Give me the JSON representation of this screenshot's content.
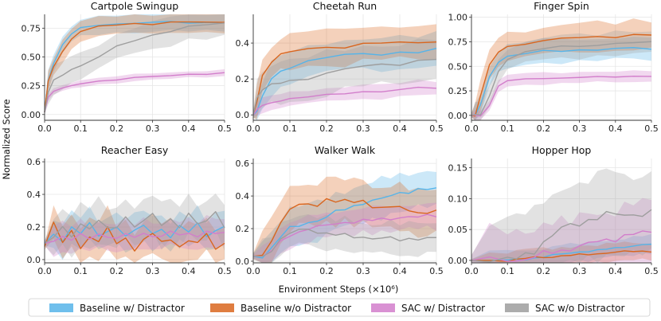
{
  "figure": {
    "ylabel": "Normalized Score",
    "xlabel": "Environment Steps (×10⁶)"
  },
  "colors": {
    "baseline_with_distractor": "#56b4e9",
    "baseline_without_distractor": "#d9661f",
    "sac_with_distractor": "#d27ecb",
    "sac_without_distractor": "#9e9e9e"
  },
  "legend": [
    {
      "key": "baseline_with_distractor",
      "label": "Baseline w/ Distractor"
    },
    {
      "key": "baseline_without_distractor",
      "label": "Baseline w/o Distractor"
    },
    {
      "key": "sac_with_distractor",
      "label": "SAC w/ Distractor"
    },
    {
      "key": "sac_without_distractor",
      "label": "SAC w/o Distractor"
    }
  ],
  "chart_data": [
    {
      "type": "line",
      "title": "Cartpole Swingup",
      "xlabel": "",
      "ylabel": "",
      "xlim": [
        0,
        0.5
      ],
      "ylim": [
        -0.05,
        0.87
      ],
      "xticks": [
        0.0,
        0.1,
        0.2,
        0.3,
        0.4,
        0.5
      ],
      "xtick_labels": [
        "0.0",
        "0.1",
        "0.2",
        "0.3",
        "0.4",
        "0.5"
      ],
      "yticks": [
        0.0,
        0.25,
        0.5,
        0.75
      ],
      "ytick_labels": [
        "0.00",
        "0.25",
        "0.50",
        "0.75"
      ],
      "x": [
        0.0,
        0.01,
        0.025,
        0.05,
        0.075,
        0.1,
        0.15,
        0.2,
        0.25,
        0.3,
        0.35,
        0.4,
        0.45,
        0.5
      ],
      "series": [
        {
          "key": "baseline_with_distractor",
          "name": "Baseline w/ Distractor",
          "values": [
            0.02,
            0.3,
            0.45,
            0.6,
            0.7,
            0.75,
            0.78,
            0.79,
            0.79,
            0.8,
            0.8,
            0.8,
            0.8,
            0.8
          ],
          "band": 0.08
        },
        {
          "key": "baseline_without_distractor",
          "name": "Baseline w/o Distractor",
          "values": [
            0.02,
            0.28,
            0.42,
            0.55,
            0.66,
            0.72,
            0.76,
            0.78,
            0.79,
            0.79,
            0.8,
            0.8,
            0.8,
            0.8
          ],
          "band": 0.09
        },
        {
          "key": "sac_with_distractor",
          "name": "SAC w/ Distractor",
          "values": [
            0.02,
            0.15,
            0.2,
            0.23,
            0.25,
            0.27,
            0.29,
            0.3,
            0.32,
            0.33,
            0.34,
            0.35,
            0.35,
            0.36
          ],
          "band": 0.03
        },
        {
          "key": "sac_without_distractor",
          "name": "SAC w/o Distractor",
          "values": [
            0.02,
            0.2,
            0.3,
            0.35,
            0.38,
            0.42,
            0.5,
            0.6,
            0.65,
            0.68,
            0.72,
            0.76,
            0.79,
            0.8
          ],
          "band": 0.12
        }
      ]
    },
    {
      "type": "line",
      "title": "Cheetah Run",
      "xlabel": "",
      "ylabel": "",
      "xlim": [
        0,
        0.5
      ],
      "ylim": [
        -0.03,
        0.56
      ],
      "xticks": [
        0.0,
        0.1,
        0.2,
        0.3,
        0.4,
        0.5
      ],
      "xtick_labels": [
        "0.0",
        "0.1",
        "0.2",
        "0.3",
        "0.4",
        "0.5"
      ],
      "yticks": [
        0.0,
        0.2,
        0.4
      ],
      "ytick_labels": [
        "0.0",
        "0.2",
        "0.4"
      ],
      "x": [
        0.0,
        0.01,
        0.025,
        0.05,
        0.075,
        0.1,
        0.15,
        0.2,
        0.25,
        0.3,
        0.35,
        0.4,
        0.45,
        0.5
      ],
      "series": [
        {
          "key": "baseline_with_distractor",
          "name": "Baseline w/ Distractor",
          "values": [
            0.0,
            0.02,
            0.1,
            0.2,
            0.24,
            0.27,
            0.3,
            0.32,
            0.33,
            0.34,
            0.34,
            0.35,
            0.35,
            0.36
          ],
          "band": 0.09
        },
        {
          "key": "baseline_without_distractor",
          "name": "Baseline w/o Distractor",
          "values": [
            0.0,
            0.08,
            0.22,
            0.3,
            0.33,
            0.35,
            0.37,
            0.38,
            0.38,
            0.39,
            0.4,
            0.4,
            0.41,
            0.41
          ],
          "band": 0.1
        },
        {
          "key": "sac_with_distractor",
          "name": "SAC w/ Distractor",
          "values": [
            0.0,
            0.03,
            0.05,
            0.07,
            0.08,
            0.09,
            0.1,
            0.11,
            0.12,
            0.13,
            0.13,
            0.14,
            0.15,
            0.15
          ],
          "band": 0.04
        },
        {
          "key": "sac_without_distractor",
          "name": "SAC w/o Distractor",
          "values": [
            0.0,
            0.1,
            0.14,
            0.16,
            0.18,
            0.19,
            0.21,
            0.23,
            0.25,
            0.27,
            0.28,
            0.29,
            0.3,
            0.31
          ],
          "band": 0.12
        }
      ]
    },
    {
      "type": "line",
      "title": "Finger Spin",
      "xlabel": "",
      "ylabel": "",
      "xlim": [
        0,
        0.5
      ],
      "ylim": [
        -0.05,
        1.03
      ],
      "xticks": [
        0.0,
        0.1,
        0.2,
        0.3,
        0.4,
        0.5
      ],
      "xtick_labels": [
        "0.0",
        "0.1",
        "0.2",
        "0.3",
        "0.4",
        "0.5"
      ],
      "yticks": [
        0.0,
        0.25,
        0.5,
        0.75,
        1.0
      ],
      "ytick_labels": [
        "0.00",
        "0.25",
        "0.50",
        "0.75",
        "1.00"
      ],
      "x": [
        0.0,
        0.01,
        0.025,
        0.05,
        0.075,
        0.1,
        0.15,
        0.2,
        0.25,
        0.3,
        0.35,
        0.4,
        0.45,
        0.5
      ],
      "series": [
        {
          "key": "baseline_with_distractor",
          "name": "Baseline w/ Distractor",
          "values": [
            0.0,
            0.0,
            0.1,
            0.4,
            0.55,
            0.6,
            0.63,
            0.65,
            0.66,
            0.67,
            0.67,
            0.68,
            0.68,
            0.68
          ],
          "band": 0.12
        },
        {
          "key": "baseline_without_distractor",
          "name": "Baseline w/o Distractor",
          "values": [
            0.0,
            0.0,
            0.2,
            0.5,
            0.65,
            0.7,
            0.74,
            0.76,
            0.78,
            0.79,
            0.8,
            0.81,
            0.82,
            0.82
          ],
          "band": 0.15
        },
        {
          "key": "sac_with_distractor",
          "name": "SAC w/ Distractor",
          "values": [
            0.0,
            0.0,
            0.0,
            0.1,
            0.3,
            0.35,
            0.37,
            0.38,
            0.38,
            0.39,
            0.39,
            0.39,
            0.4,
            0.4
          ],
          "band": 0.06
        },
        {
          "key": "sac_without_distractor",
          "name": "SAC w/o Distractor",
          "values": [
            0.0,
            0.0,
            0.0,
            0.2,
            0.45,
            0.58,
            0.64,
            0.68,
            0.7,
            0.71,
            0.72,
            0.73,
            0.74,
            0.74
          ],
          "band": 0.12
        }
      ]
    },
    {
      "type": "line",
      "title": "Reacher Easy",
      "xlabel": "",
      "ylabel": "",
      "xlim": [
        0,
        0.5
      ],
      "ylim": [
        -0.02,
        0.62
      ],
      "xticks": [
        0.0,
        0.1,
        0.2,
        0.3,
        0.4,
        0.5
      ],
      "xtick_labels": [
        "0.0",
        "0.1",
        "0.2",
        "0.3",
        "0.4",
        "0.5"
      ],
      "yticks": [
        0.0,
        0.2,
        0.4,
        0.6
      ],
      "ytick_labels": [
        "0.0",
        "0.2",
        "0.4",
        "0.6"
      ],
      "x": [
        0.0,
        0.025,
        0.05,
        0.075,
        0.1,
        0.125,
        0.15,
        0.175,
        0.2,
        0.225,
        0.25,
        0.275,
        0.3,
        0.325,
        0.35,
        0.375,
        0.4,
        0.425,
        0.45,
        0.475,
        0.5
      ],
      "series": [
        {
          "key": "baseline_with_distractor",
          "name": "Baseline w/ Distractor",
          "values": [
            0.1,
            0.15,
            0.12,
            0.2,
            0.16,
            0.22,
            0.14,
            0.18,
            0.2,
            0.15,
            0.17,
            0.21,
            0.16,
            0.19,
            0.14,
            0.2,
            0.17,
            0.22,
            0.15,
            0.18,
            0.2
          ],
          "band": 0.1
        },
        {
          "key": "baseline_without_distractor",
          "name": "Baseline w/o Distractor",
          "values": [
            0.08,
            0.22,
            0.1,
            0.18,
            0.07,
            0.15,
            0.1,
            0.2,
            0.09,
            0.14,
            0.06,
            0.12,
            0.16,
            0.1,
            0.13,
            0.08,
            0.12,
            0.1,
            0.15,
            0.07,
            0.1
          ],
          "band": 0.12
        },
        {
          "key": "sac_with_distractor",
          "name": "SAC w/ Distractor",
          "values": [
            0.1,
            0.12,
            0.14,
            0.12,
            0.15,
            0.13,
            0.16,
            0.14,
            0.13,
            0.15,
            0.14,
            0.16,
            0.15,
            0.14,
            0.17,
            0.15,
            0.16,
            0.15,
            0.17,
            0.16,
            0.16
          ],
          "band": 0.09
        },
        {
          "key": "sac_without_distractor",
          "name": "SAC w/o Distractor",
          "values": [
            0.1,
            0.14,
            0.2,
            0.15,
            0.22,
            0.18,
            0.24,
            0.19,
            0.21,
            0.26,
            0.2,
            0.23,
            0.28,
            0.22,
            0.25,
            0.2,
            0.27,
            0.22,
            0.24,
            0.3,
            0.2
          ],
          "band": 0.13
        }
      ]
    },
    {
      "type": "line",
      "title": "Walker Walk",
      "xlabel": "",
      "ylabel": "",
      "xlim": [
        0,
        0.5
      ],
      "ylim": [
        -0.01,
        0.63
      ],
      "xticks": [
        0.0,
        0.1,
        0.2,
        0.3,
        0.4,
        0.5
      ],
      "xtick_labels": [
        "0.0",
        "0.1",
        "0.2",
        "0.3",
        "0.4",
        "0.5"
      ],
      "yticks": [
        0.0,
        0.2,
        0.4,
        0.6
      ],
      "ytick_labels": [
        "0.0",
        "0.2",
        "0.4",
        "0.6"
      ],
      "x": [
        0.0,
        0.025,
        0.05,
        0.075,
        0.1,
        0.125,
        0.15,
        0.175,
        0.2,
        0.225,
        0.25,
        0.275,
        0.3,
        0.325,
        0.35,
        0.375,
        0.4,
        0.425,
        0.45,
        0.475,
        0.5
      ],
      "series": [
        {
          "key": "baseline_with_distractor",
          "name": "Baseline w/ Distractor",
          "values": [
            0.03,
            0.03,
            0.08,
            0.15,
            0.2,
            0.22,
            0.24,
            0.25,
            0.27,
            0.3,
            0.32,
            0.34,
            0.36,
            0.37,
            0.38,
            0.4,
            0.42,
            0.43,
            0.44,
            0.44,
            0.44
          ],
          "band": 0.12
        },
        {
          "key": "baseline_without_distractor",
          "name": "Baseline w/o Distractor",
          "values": [
            0.03,
            0.04,
            0.12,
            0.25,
            0.32,
            0.34,
            0.35,
            0.33,
            0.4,
            0.36,
            0.38,
            0.35,
            0.37,
            0.34,
            0.33,
            0.34,
            0.32,
            0.31,
            0.3,
            0.3,
            0.32
          ],
          "band": 0.14
        },
        {
          "key": "sac_with_distractor",
          "name": "SAC w/ Distractor",
          "values": [
            0.03,
            0.03,
            0.06,
            0.12,
            0.16,
            0.18,
            0.2,
            0.21,
            0.22,
            0.23,
            0.24,
            0.24,
            0.25,
            0.25,
            0.26,
            0.26,
            0.27,
            0.27,
            0.27,
            0.28,
            0.28
          ],
          "band": 0.08
        },
        {
          "key": "sac_without_distractor",
          "name": "SAC w/o Distractor",
          "values": [
            0.03,
            0.03,
            0.07,
            0.13,
            0.17,
            0.19,
            0.2,
            0.18,
            0.17,
            0.16,
            0.16,
            0.15,
            0.15,
            0.14,
            0.14,
            0.14,
            0.13,
            0.14,
            0.14,
            0.14,
            0.14
          ],
          "band": 0.1
        }
      ]
    },
    {
      "type": "line",
      "title": "Hopper Hop",
      "xlabel": "",
      "ylabel": "",
      "xlim": [
        0,
        0.5
      ],
      "ylim": [
        -0.004,
        0.165
      ],
      "xticks": [
        0.0,
        0.1,
        0.2,
        0.3,
        0.4,
        0.5
      ],
      "xtick_labels": [
        "0.0",
        "0.1",
        "0.2",
        "0.3",
        "0.4",
        "0.5"
      ],
      "yticks": [
        0.0,
        0.05,
        0.1,
        0.15
      ],
      "ytick_labels": [
        "0.00",
        "0.05",
        "0.10",
        "0.15"
      ],
      "x": [
        0.0,
        0.05,
        0.1,
        0.125,
        0.15,
        0.175,
        0.2,
        0.225,
        0.25,
        0.275,
        0.3,
        0.325,
        0.35,
        0.375,
        0.4,
        0.425,
        0.45,
        0.475,
        0.5
      ],
      "series": [
        {
          "key": "baseline_with_distractor",
          "name": "Baseline w/ Distractor",
          "values": [
            0.0,
            0.0,
            0.0,
            0.001,
            0.002,
            0.004,
            0.006,
            0.008,
            0.01,
            0.012,
            0.014,
            0.015,
            0.016,
            0.018,
            0.02,
            0.022,
            0.024,
            0.025,
            0.026
          ],
          "band": 0.015
        },
        {
          "key": "baseline_without_distractor",
          "name": "Baseline w/o Distractor",
          "values": [
            0.0,
            0.0,
            0.0,
            0.001,
            0.003,
            0.005,
            0.005,
            0.006,
            0.007,
            0.008,
            0.009,
            0.01,
            0.011,
            0.012,
            0.013,
            0.014,
            0.015,
            0.015,
            0.015
          ],
          "band": 0.015
        },
        {
          "key": "sac_with_distractor",
          "name": "SAC w/ Distractor",
          "values": [
            0.0,
            0.0,
            0.0,
            0.001,
            0.003,
            0.006,
            0.01,
            0.013,
            0.016,
            0.02,
            0.023,
            0.026,
            0.03,
            0.033,
            0.036,
            0.04,
            0.042,
            0.044,
            0.045
          ],
          "band": 0.05
        },
        {
          "key": "sac_without_distractor",
          "name": "SAC w/o Distractor",
          "values": [
            0.0,
            0.0,
            0.0,
            0.002,
            0.008,
            0.018,
            0.03,
            0.04,
            0.05,
            0.056,
            0.062,
            0.066,
            0.07,
            0.072,
            0.074,
            0.075,
            0.076,
            0.076,
            0.075
          ],
          "band": 0.07
        }
      ]
    }
  ]
}
